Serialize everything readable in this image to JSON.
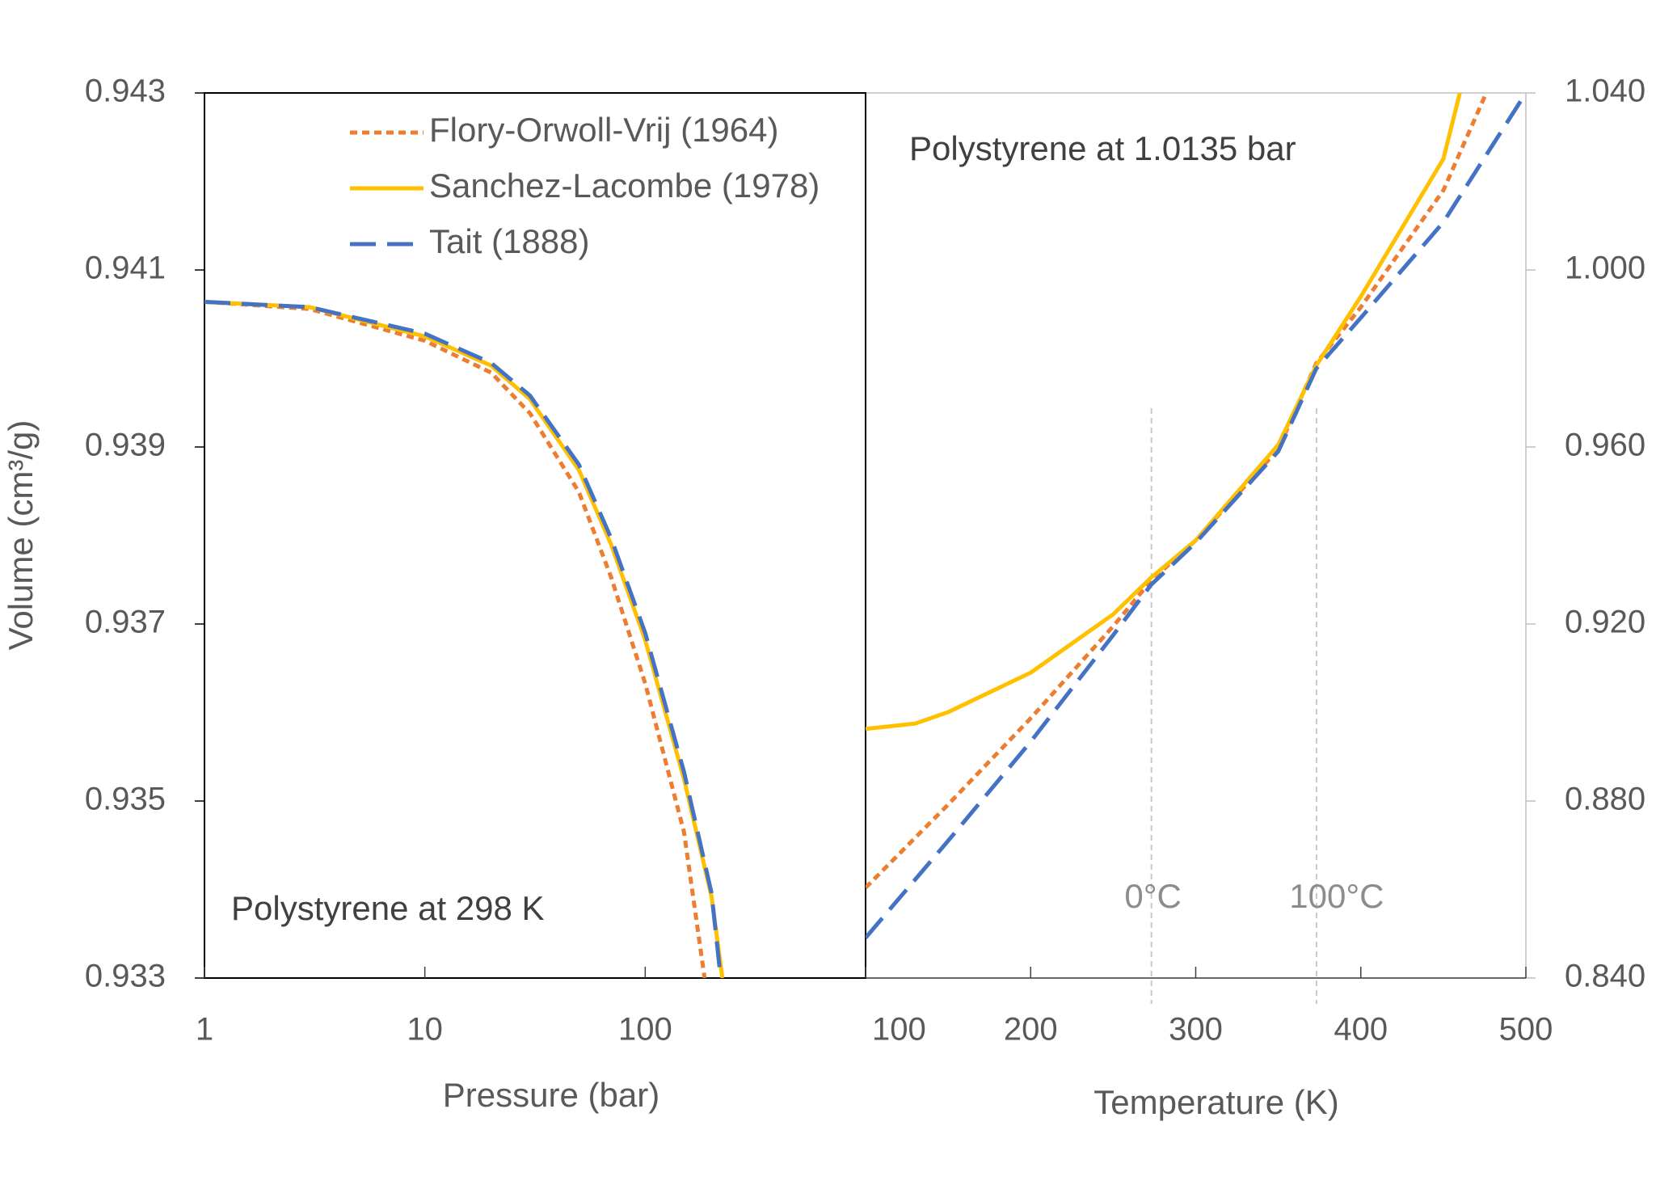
{
  "chart_data": [
    {
      "type": "line",
      "xscale": "log",
      "xlabel": "Pressure (bar)",
      "ylabel": "Volume (cm³/g)",
      "annotation": "Polystyrene at 298 K",
      "legend": "top",
      "xlim": [
        1,
        1000
      ],
      "xticks": [
        1,
        10,
        100
      ],
      "ylim": [
        0.933,
        0.943
      ],
      "yticks": [
        0.933,
        0.935,
        0.937,
        0.939,
        0.941,
        0.943
      ],
      "yaxis_side": "left",
      "series": [
        {
          "name": "Flory-Orwoll-Vrij (1964)",
          "color": "#ED7D31",
          "dash": "dotted",
          "x": [
            1,
            3,
            10,
            20,
            30,
            50,
            70,
            100,
            150,
            186
          ],
          "values": [
            0.94064,
            0.94056,
            0.9402,
            0.93984,
            0.93938,
            0.93849,
            0.93753,
            0.93633,
            0.93465,
            0.933
          ]
        },
        {
          "name": "Sanchez-Lacombe (1978)",
          "color": "#FFC000",
          "dash": "solid",
          "x": [
            1,
            3,
            10,
            20,
            30,
            50,
            70,
            100,
            150,
            200,
            224
          ],
          "values": [
            0.94064,
            0.94058,
            0.94025,
            0.93992,
            0.93954,
            0.93874,
            0.9379,
            0.93682,
            0.93525,
            0.93392,
            0.933
          ]
        },
        {
          "name": "Tait (1888)",
          "color": "#4472C4",
          "dash": "dashed",
          "x": [
            1,
            3,
            10,
            20,
            30,
            50,
            70,
            100,
            150,
            200,
            220
          ],
          "values": [
            0.94064,
            0.94058,
            0.94028,
            0.93995,
            0.93958,
            0.9388,
            0.93797,
            0.9369,
            0.93533,
            0.93396,
            0.933
          ]
        }
      ]
    },
    {
      "type": "line",
      "xlabel": "Temperature (K)",
      "annotation": "Polystyrene at 1.0135 bar",
      "xlim": [
        100,
        500
      ],
      "xticks": [
        100,
        200,
        300,
        400,
        500
      ],
      "ylim": [
        0.84,
        1.04
      ],
      "yaxis_side": "right",
      "yticks": [
        {
          "value": 0.84,
          "label": "0.840"
        },
        {
          "value": 0.88,
          "label": "0.880"
        },
        {
          "value": 0.92,
          "label": "0.920"
        },
        {
          "value": 0.96,
          "label": "0.960"
        },
        {
          "value": 1.0,
          "label": "1.000"
        },
        {
          "value": 1.04,
          "label": "1.040"
        }
      ],
      "vlines": [
        {
          "value": 273.15,
          "label": "0°C"
        },
        {
          "value": 373.15,
          "label": "100°C"
        }
      ],
      "series": [
        {
          "color": "#ED7D31",
          "dash": "dotted",
          "x": [
            100,
            150,
            200,
            250,
            273,
            300,
            350,
            373,
            400,
            450,
            476
          ],
          "values": [
            0.8604,
            0.8792,
            0.8987,
            0.9195,
            0.9298,
            0.9389,
            0.9595,
            0.9789,
            0.9916,
            1.018,
            1.04
          ]
        },
        {
          "color": "#FFC000",
          "dash": "solid",
          "x": [
            100,
            130,
            150,
            200,
            250,
            273,
            300,
            350,
            373,
            400,
            450,
            460
          ],
          "values": [
            0.8963,
            0.8975,
            0.9001,
            0.909,
            0.9222,
            0.9305,
            0.9389,
            0.9605,
            0.9784,
            0.994,
            1.0251,
            1.04
          ]
        },
        {
          "color": "#4472C4",
          "dash": "dashed",
          "x": [
            100,
            150,
            200,
            250,
            273,
            300,
            350,
            373,
            400,
            450,
            500
          ],
          "values": [
            0.8491,
            0.871,
            0.8934,
            0.9175,
            0.9289,
            0.9384,
            0.959,
            0.9777,
            0.9892,
            1.0108,
            1.04
          ]
        }
      ]
    }
  ]
}
